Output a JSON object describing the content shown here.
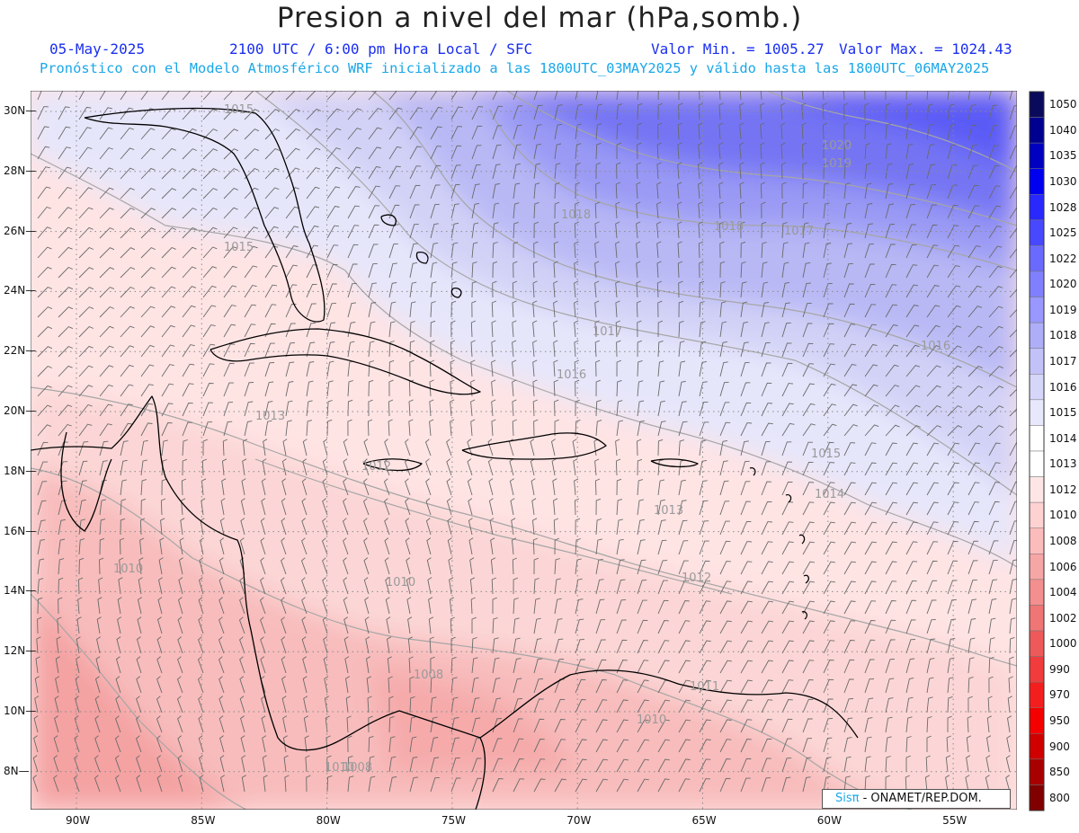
{
  "title": "Presion a nivel del mar (hPa,somb.)",
  "subtitle": {
    "date": "05-May-2025",
    "time": "2100 UTC / 6:00 pm Hora Local / SFC",
    "min": "Valor Min. = 1005.27",
    "max": "Valor Max. = 1024.43",
    "forecast": "Pronóstico con el Modelo Atmosférico WRF inicializado a las 1800UTC_03MAY2025 y válido hasta las  1800UTC_06MAY2025"
  },
  "lat_labels": [
    "30N",
    "28N",
    "26N",
    "24N",
    "22N",
    "20N",
    "18N",
    "16N",
    "14N",
    "12N",
    "10N",
    "8N"
  ],
  "lon_labels": [
    "90W",
    "85W",
    "80W",
    "75W",
    "70W",
    "65W",
    "60W",
    "55W"
  ],
  "legend": {
    "levels": [
      "1050",
      "1040",
      "1035",
      "1030",
      "1028",
      "1025",
      "1022",
      "1020",
      "1019",
      "1018",
      "1017",
      "1016",
      "1015",
      "1014",
      "1013",
      "1012",
      "1010",
      "1008",
      "1006",
      "1004",
      "1002",
      "1000",
      "990",
      "970",
      "950",
      "900",
      "850",
      "800"
    ],
    "colors": [
      "#0a0a5c",
      "#000090",
      "#0000c0",
      "#0000f0",
      "#2828ff",
      "#4848ff",
      "#6a6aff",
      "#8080ff",
      "#9898ff",
      "#aeaef8",
      "#c2c2f8",
      "#d6d6fa",
      "#e8e8fc",
      "#ffffff",
      "#ffffff",
      "#ffe6e6",
      "#ffd2d2",
      "#fcbcbc",
      "#f7a6a6",
      "#f38f8f",
      "#f07575",
      "#ee5a5a",
      "#f03c3c",
      "#f51e1e",
      "#f40000",
      "#d00000",
      "#a80000",
      "#800000"
    ]
  },
  "contour_labels": [
    "1015",
    "1015",
    "1020",
    "1019",
    "1018",
    "1018",
    "1017",
    "1017",
    "1016",
    "1016",
    "1015",
    "1014",
    "1013",
    "1013",
    "1012",
    "1012",
    "1011",
    "1010",
    "1010",
    "1010",
    "1010",
    "1008",
    "1008"
  ],
  "credit": {
    "logo": "Sisπ",
    "text": " - ONAMET/REP.DOM."
  }
}
